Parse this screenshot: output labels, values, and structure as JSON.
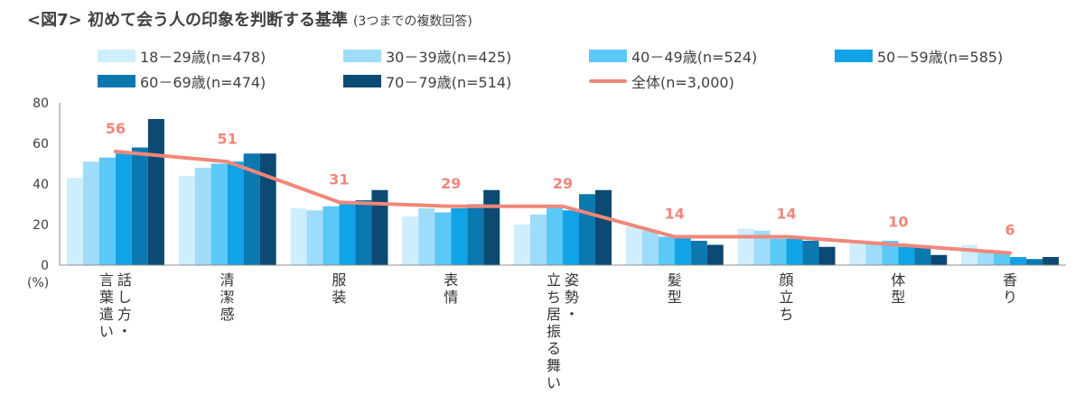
{
  "title": {
    "main": "<図7> 初めて会う人の印象を判断する基準",
    "sub": "(3つまでの複数回答)"
  },
  "chart_data": {
    "type": "bar",
    "unit_label": "(%)",
    "ylim": [
      0,
      80
    ],
    "yticks": [
      "0",
      "20",
      "40",
      "60",
      "80"
    ],
    "categories": [
      "話し方・言葉遣い",
      "清潔感",
      "服装",
      "表情",
      "姿勢・立ち居振る舞い",
      "髪型",
      "顔立ち",
      "体型",
      "香り"
    ],
    "category_columns": [
      [
        "話し方・",
        "言葉遣い"
      ],
      [
        "清潔感"
      ],
      [
        "服装"
      ],
      [
        "表情"
      ],
      [
        "姿勢・",
        "立ち居振る舞い"
      ],
      [
        "髪型"
      ],
      [
        "顔立ち"
      ],
      [
        "体型"
      ],
      [
        "香り"
      ]
    ],
    "series": [
      {
        "name": "18－29歳(n=478)",
        "color": "#cfeefd",
        "values": [
          43,
          44,
          28,
          24,
          20,
          19,
          18,
          11,
          10
        ]
      },
      {
        "name": "30－39歳(n=425)",
        "color": "#9edcfa",
        "values": [
          51,
          48,
          27,
          28,
          25,
          17,
          17,
          11,
          7
        ]
      },
      {
        "name": "40－49歳(n=524)",
        "color": "#5cc8f5",
        "values": [
          53,
          50,
          29,
          26,
          29,
          14,
          13,
          12,
          6
        ]
      },
      {
        "name": "50－59歳(n=585)",
        "color": "#10a3e6",
        "values": [
          55,
          51,
          30,
          28,
          27,
          14,
          13,
          9,
          4
        ]
      },
      {
        "name": "60－69歳(n=474)",
        "color": "#0b78b0",
        "values": [
          58,
          55,
          32,
          30,
          35,
          12,
          12,
          9,
          3
        ]
      },
      {
        "name": "70－79歳(n=514)",
        "color": "#0a4a73",
        "values": [
          72,
          55,
          37,
          37,
          37,
          10,
          9,
          5,
          4
        ]
      }
    ],
    "total": {
      "name": "全体(n=3,000)",
      "color": "#f0877a",
      "values": [
        56,
        51,
        31,
        29,
        29,
        14,
        14,
        10,
        6
      ],
      "labels": [
        "56",
        "51",
        "31",
        "29",
        "29",
        "14",
        "14",
        "10",
        "6"
      ]
    },
    "grid": false,
    "legend_position": "top"
  }
}
